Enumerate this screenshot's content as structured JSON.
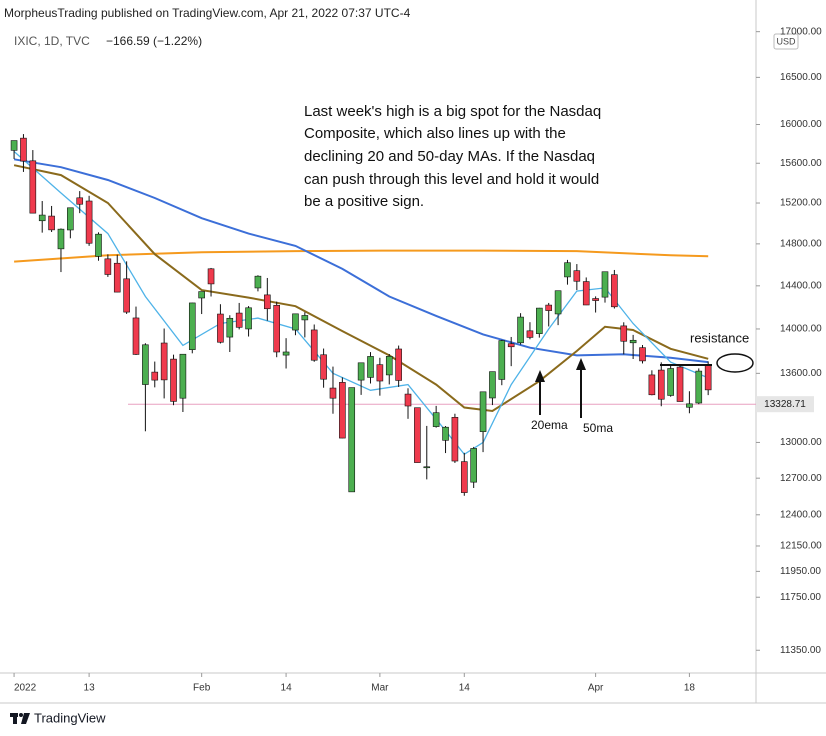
{
  "header": {
    "publisher": "MorpheusTrading published on TradingView.com, Apr 21, 2022 07:37 UTC-4",
    "symbol": "IXIC, 1D, TVC",
    "change": "−166.59 (−1.22%)",
    "currency": "USD"
  },
  "footer": {
    "brand": "TradingView"
  },
  "chart_data": {
    "type": "candlestick",
    "log_scale": true,
    "up_color": "#4caf50",
    "down_color": "#ef3a4d",
    "open": [
      15732,
      15858,
      15625,
      15025,
      15071,
      14752,
      14935,
      15252,
      15220,
      14680,
      14656,
      14614,
      14466,
      14101,
      13501,
      13611,
      13872,
      13727,
      13381,
      13812,
      14286,
      14561,
      14137,
      13926,
      14146,
      14000,
      14380,
      14315,
      14218,
      13763,
      13990,
      14083,
      13991,
      13766,
      13470,
      13520,
      12587,
      13540,
      13564,
      13677,
      13586,
      13818,
      13417,
      13298,
      12787,
      13135,
      13018,
      13215,
      12838,
      12667,
      13092,
      13383,
      13546,
      13866,
      13874,
      13983,
      13957,
      14220,
      14138,
      14484,
      14543,
      14440,
      14281,
      14294,
      14505,
      14028,
      13874,
      13830,
      13586,
      13629,
      13405,
      13656,
      13302,
      13339,
      13678
    ],
    "high": [
      15833,
      15900,
      15735,
      15220,
      15171,
      14950,
      15153,
      15319,
      15272,
      14912,
      14699,
      14696,
      14632,
      14206,
      13870,
      13705,
      14004,
      13767,
      13771,
      14242,
      14346,
      14569,
      14228,
      14126,
      14240,
      14211,
      14500,
      14474,
      14252,
      13916,
      14139,
      14154,
      14041,
      13822,
      13660,
      13564,
      13474,
      13694,
      13790,
      13739,
      13773,
      13849,
      13468,
      13300,
      13141,
      13314,
      13140,
      13246,
      12912,
      12962,
      13438,
      13616,
      13901,
      13927,
      14145,
      14062,
      14194,
      14240,
      14355,
      14646,
      14606,
      14479,
      14301,
      14534,
      14550,
      14061,
      13946,
      13854,
      13627,
      13698,
      13667,
      13675,
      13442,
      13644,
      13706
    ],
    "low": [
      15644,
      15512,
      15100,
      14909,
      14915,
      14530,
      14854,
      15100,
      14781,
      14638,
      14484,
      14340,
      14138,
      13764,
      13095,
      13476,
      13379,
      13320,
      13261,
      13779,
      14137,
      14300,
      13868,
      13791,
      13996,
      13931,
      14348,
      14076,
      13744,
      13643,
      13943,
      13923,
      13703,
      13473,
      13246,
      13035,
      12587,
      13410,
      13510,
      13403,
      13502,
      13480,
      13202,
      12830,
      12690,
      13126,
      12910,
      12827,
      12555,
      12619,
      12918,
      13321,
      13495,
      13664,
      13858,
      13906,
      13921,
      14023,
      14035,
      14411,
      14360,
      14220,
      14151,
      14243,
      14188,
      13770,
      13728,
      13688,
      13406,
      13311,
      13394,
      13351,
      13250,
      13329,
      13408
    ],
    "close": [
      15833,
      15622,
      15100,
      15081,
      14936,
      14943,
      15153,
      15188,
      14806,
      14894,
      14507,
      14341,
      14155,
      13769,
      13856,
      13540,
      13542,
      13353,
      13771,
      14240,
      14346,
      14418,
      13879,
      14098,
      14015,
      14195,
      14491,
      14186,
      13791,
      13791,
      14139,
      14124,
      13717,
      13548,
      13381,
      13037,
      13474,
      13694,
      13751,
      13532,
      13752,
      13537,
      13313,
      12830,
      12795,
      13255,
      13130,
      12843,
      12581,
      12949,
      13437,
      13615,
      13894,
      13838,
      14109,
      13923,
      14192,
      14169,
      14354,
      14619,
      14443,
      14221,
      14262,
      14533,
      14204,
      13888,
      13897,
      13711,
      13411,
      13372,
      13643,
      13352,
      13332,
      13620,
      13454
    ],
    "series": [
      {
        "color": "#f59a1e",
        "x": [
          0,
          10,
          20,
          30,
          40,
          50,
          60,
          70,
          74
        ],
        "values": [
          14630,
          14690,
          14720,
          14730,
          14735,
          14735,
          14730,
          14690,
          14680
        ]
      },
      {
        "color": "#3c6fd8",
        "x": [
          0,
          5,
          10,
          15,
          20,
          25,
          30,
          35,
          40,
          45,
          50,
          55,
          60,
          65,
          70,
          74
        ],
        "values": [
          15640,
          15560,
          15430,
          15250,
          15050,
          14900,
          14780,
          14560,
          14300,
          14120,
          13950,
          13830,
          13760,
          13770,
          13740,
          13700
        ]
      },
      {
        "color": "#8a6a1c",
        "x": [
          0,
          5,
          10,
          15,
          20,
          25,
          30,
          35,
          40,
          45,
          48,
          51,
          56,
          60,
          63,
          66,
          70,
          74
        ],
        "values": [
          15580,
          15480,
          15200,
          14700,
          14360,
          14290,
          14210,
          13980,
          13760,
          13500,
          13300,
          13270,
          13530,
          13800,
          14020,
          13990,
          13820,
          13730
        ]
      },
      {
        "color": "#4fb3e8",
        "x": [
          0,
          5,
          10,
          14,
          18,
          22,
          26,
          30,
          34,
          38,
          42,
          46,
          48,
          50,
          53,
          57,
          60,
          63,
          66,
          70,
          74
        ],
        "values": [
          15720,
          15300,
          14900,
          14300,
          13850,
          14050,
          14100,
          14000,
          13600,
          13450,
          13500,
          13100,
          12900,
          13000,
          13500,
          14000,
          14350,
          14380,
          14050,
          13700,
          13560
        ]
      }
    ],
    "price_line": 13328.71,
    "xlim": [
      -1.5,
      79.1
    ],
    "xticks": [
      {
        "value": 0,
        "label": "2022"
      },
      {
        "value": 8,
        "label": "13"
      },
      {
        "value": 20,
        "label": "Feb"
      },
      {
        "value": 29,
        "label": "14"
      },
      {
        "value": 39,
        "label": "Mar"
      },
      {
        "value": 48,
        "label": "14"
      },
      {
        "value": 62,
        "label": "Apr"
      },
      {
        "value": 72,
        "label": "18"
      }
    ],
    "ylim": [
      11190,
      17130
    ],
    "yticks": [
      {
        "value": 17000,
        "label": "17000.00"
      },
      {
        "value": 16500,
        "label": "16500.00"
      },
      {
        "value": 16000,
        "label": "16000.00"
      },
      {
        "value": 15600,
        "label": "15600.00"
      },
      {
        "value": 15200,
        "label": "15200.00"
      },
      {
        "value": 14800,
        "label": "14800.00"
      },
      {
        "value": 14400,
        "label": "14400.00"
      },
      {
        "value": 14000,
        "label": "14000.00"
      },
      {
        "value": 13600,
        "label": "13600.00"
      },
      {
        "value": 13000,
        "label": "13000.00"
      },
      {
        "value": 12700,
        "label": "12700.00"
      },
      {
        "value": 12400,
        "label": "12400.00"
      },
      {
        "value": 12150,
        "label": "12150.00"
      },
      {
        "value": 11950,
        "label": "11950.00"
      },
      {
        "value": 11750,
        "label": "11750.00"
      },
      {
        "value": 11350,
        "label": "11350.00"
      }
    ],
    "annotations": {
      "note": [
        "Last week's high is a big spot for the Nasdaq",
        "Composite, which also lines up with the",
        "declining 20 and 50-day MAs.  If the Nasdaq",
        "can push through this level and hold it would",
        "be a positive sign."
      ],
      "resistance": "resistance",
      "ema_label": "20ema",
      "ma_label": "50ma"
    }
  }
}
